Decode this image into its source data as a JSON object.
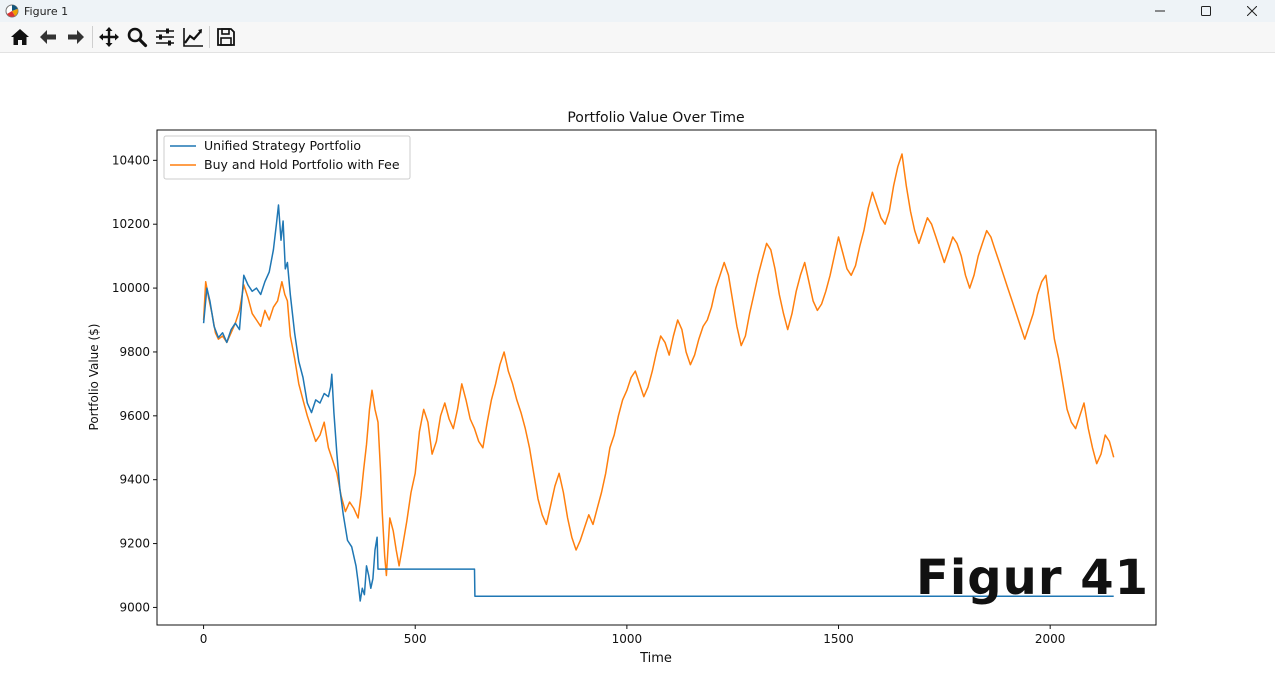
{
  "window": {
    "title": "Figure 1",
    "app_icon": "matplotlib-icon",
    "controls": [
      "minimize-icon",
      "maximize-icon",
      "close-icon"
    ]
  },
  "toolbar": {
    "buttons": [
      {
        "name": "home",
        "icon": "home-icon"
      },
      {
        "name": "back",
        "icon": "arrow-left-icon"
      },
      {
        "name": "forward",
        "icon": "arrow-right-icon"
      },
      {
        "name": "pan",
        "icon": "move-icon"
      },
      {
        "name": "zoom",
        "icon": "zoom-icon"
      },
      {
        "name": "configure-subplots",
        "icon": "sliders-icon"
      },
      {
        "name": "edit-axis",
        "icon": "line-chart-icon"
      },
      {
        "name": "save",
        "icon": "save-icon"
      }
    ]
  },
  "overlay_caption": "Figur 41",
  "chart_data": {
    "type": "line",
    "title": "Portfolio Value Over Time",
    "xlabel": "Time",
    "ylabel": "Portfolio Value ($)",
    "xlim": [
      -110,
      2250
    ],
    "ylim": [
      8945,
      10495
    ],
    "xticks": [
      0,
      500,
      1000,
      1500,
      2000
    ],
    "yticks": [
      9000,
      9200,
      9400,
      9600,
      9800,
      10000,
      10200,
      10400
    ],
    "grid": false,
    "legend": "top-left",
    "series": [
      {
        "name": "Unified Strategy Portfolio",
        "color": "#1f77b4",
        "points": [
          [
            0,
            9890
          ],
          [
            8,
            10000
          ],
          [
            15,
            9960
          ],
          [
            25,
            9880
          ],
          [
            35,
            9845
          ],
          [
            45,
            9860
          ],
          [
            55,
            9830
          ],
          [
            65,
            9870
          ],
          [
            75,
            9890
          ],
          [
            85,
            9870
          ],
          [
            95,
            10040
          ],
          [
            105,
            10010
          ],
          [
            115,
            9990
          ],
          [
            125,
            10000
          ],
          [
            135,
            9980
          ],
          [
            145,
            10020
          ],
          [
            155,
            10050
          ],
          [
            165,
            10120
          ],
          [
            172,
            10200
          ],
          [
            177,
            10260
          ],
          [
            183,
            10150
          ],
          [
            188,
            10210
          ],
          [
            193,
            10060
          ],
          [
            198,
            10080
          ],
          [
            205,
            9980
          ],
          [
            215,
            9860
          ],
          [
            225,
            9770
          ],
          [
            235,
            9720
          ],
          [
            245,
            9640
          ],
          [
            255,
            9610
          ],
          [
            265,
            9650
          ],
          [
            275,
            9640
          ],
          [
            285,
            9670
          ],
          [
            295,
            9660
          ],
          [
            300,
            9690
          ],
          [
            303,
            9730
          ],
          [
            308,
            9610
          ],
          [
            315,
            9480
          ],
          [
            322,
            9370
          ],
          [
            330,
            9290
          ],
          [
            340,
            9210
          ],
          [
            350,
            9190
          ],
          [
            360,
            9130
          ],
          [
            365,
            9080
          ],
          [
            370,
            9020
          ],
          [
            375,
            9060
          ],
          [
            380,
            9040
          ],
          [
            385,
            9130
          ],
          [
            390,
            9100
          ],
          [
            395,
            9060
          ],
          [
            400,
            9090
          ],
          [
            405,
            9180
          ],
          [
            410,
            9220
          ],
          [
            412,
            9120
          ],
          [
            640,
            9120
          ],
          [
            641,
            9035
          ],
          [
            2150,
            9035
          ]
        ]
      },
      {
        "name": "Buy and Hold Portfolio with Fee",
        "color": "#ff7f0e",
        "points": [
          [
            0,
            9900
          ],
          [
            5,
            10020
          ],
          [
            12,
            9970
          ],
          [
            20,
            9920
          ],
          [
            28,
            9860
          ],
          [
            35,
            9840
          ],
          [
            45,
            9850
          ],
          [
            55,
            9830
          ],
          [
            65,
            9860
          ],
          [
            75,
            9890
          ],
          [
            85,
            9930
          ],
          [
            95,
            10010
          ],
          [
            105,
            9970
          ],
          [
            115,
            9920
          ],
          [
            125,
            9900
          ],
          [
            135,
            9880
          ],
          [
            145,
            9930
          ],
          [
            155,
            9900
          ],
          [
            165,
            9940
          ],
          [
            175,
            9960
          ],
          [
            185,
            10020
          ],
          [
            192,
            9980
          ],
          [
            198,
            9960
          ],
          [
            205,
            9850
          ],
          [
            215,
            9780
          ],
          [
            225,
            9700
          ],
          [
            235,
            9650
          ],
          [
            245,
            9600
          ],
          [
            255,
            9560
          ],
          [
            265,
            9520
          ],
          [
            275,
            9540
          ],
          [
            285,
            9580
          ],
          [
            295,
            9500
          ],
          [
            305,
            9460
          ],
          [
            315,
            9420
          ],
          [
            325,
            9350
          ],
          [
            335,
            9300
          ],
          [
            345,
            9330
          ],
          [
            355,
            9310
          ],
          [
            365,
            9280
          ],
          [
            372,
            9350
          ],
          [
            378,
            9430
          ],
          [
            385,
            9510
          ],
          [
            392,
            9620
          ],
          [
            398,
            9680
          ],
          [
            405,
            9620
          ],
          [
            412,
            9580
          ],
          [
            418,
            9430
          ],
          [
            422,
            9300
          ],
          [
            428,
            9160
          ],
          [
            432,
            9100
          ],
          [
            440,
            9280
          ],
          [
            448,
            9240
          ],
          [
            455,
            9180
          ],
          [
            462,
            9130
          ],
          [
            470,
            9190
          ],
          [
            480,
            9270
          ],
          [
            490,
            9360
          ],
          [
            500,
            9420
          ],
          [
            510,
            9550
          ],
          [
            520,
            9620
          ],
          [
            530,
            9580
          ],
          [
            540,
            9480
          ],
          [
            550,
            9520
          ],
          [
            560,
            9600
          ],
          [
            570,
            9640
          ],
          [
            580,
            9590
          ],
          [
            590,
            9560
          ],
          [
            600,
            9620
          ],
          [
            610,
            9700
          ],
          [
            620,
            9650
          ],
          [
            630,
            9590
          ],
          [
            640,
            9560
          ],
          [
            650,
            9520
          ],
          [
            660,
            9500
          ],
          [
            670,
            9580
          ],
          [
            680,
            9650
          ],
          [
            690,
            9700
          ],
          [
            700,
            9760
          ],
          [
            710,
            9800
          ],
          [
            720,
            9740
          ],
          [
            730,
            9700
          ],
          [
            740,
            9650
          ],
          [
            750,
            9610
          ],
          [
            760,
            9560
          ],
          [
            770,
            9500
          ],
          [
            780,
            9420
          ],
          [
            790,
            9340
          ],
          [
            800,
            9290
          ],
          [
            810,
            9260
          ],
          [
            820,
            9320
          ],
          [
            830,
            9380
          ],
          [
            840,
            9420
          ],
          [
            850,
            9360
          ],
          [
            860,
            9280
          ],
          [
            870,
            9220
          ],
          [
            880,
            9180
          ],
          [
            890,
            9210
          ],
          [
            900,
            9250
          ],
          [
            910,
            9290
          ],
          [
            920,
            9260
          ],
          [
            930,
            9310
          ],
          [
            940,
            9360
          ],
          [
            950,
            9420
          ],
          [
            960,
            9500
          ],
          [
            970,
            9540
          ],
          [
            980,
            9600
          ],
          [
            990,
            9650
          ],
          [
            1000,
            9680
          ],
          [
            1010,
            9720
          ],
          [
            1020,
            9740
          ],
          [
            1030,
            9700
          ],
          [
            1040,
            9660
          ],
          [
            1050,
            9690
          ],
          [
            1060,
            9740
          ],
          [
            1070,
            9800
          ],
          [
            1080,
            9850
          ],
          [
            1090,
            9830
          ],
          [
            1100,
            9790
          ],
          [
            1110,
            9850
          ],
          [
            1120,
            9900
          ],
          [
            1130,
            9870
          ],
          [
            1140,
            9800
          ],
          [
            1150,
            9760
          ],
          [
            1160,
            9790
          ],
          [
            1170,
            9840
          ],
          [
            1180,
            9880
          ],
          [
            1190,
            9900
          ],
          [
            1200,
            9940
          ],
          [
            1210,
            10000
          ],
          [
            1220,
            10040
          ],
          [
            1230,
            10080
          ],
          [
            1240,
            10040
          ],
          [
            1250,
            9960
          ],
          [
            1260,
            9880
          ],
          [
            1270,
            9820
          ],
          [
            1280,
            9850
          ],
          [
            1290,
            9920
          ],
          [
            1300,
            9980
          ],
          [
            1310,
            10040
          ],
          [
            1320,
            10090
          ],
          [
            1330,
            10140
          ],
          [
            1340,
            10120
          ],
          [
            1350,
            10060
          ],
          [
            1360,
            9980
          ],
          [
            1370,
            9920
          ],
          [
            1380,
            9870
          ],
          [
            1390,
            9920
          ],
          [
            1400,
            9990
          ],
          [
            1410,
            10040
          ],
          [
            1420,
            10080
          ],
          [
            1430,
            10020
          ],
          [
            1440,
            9960
          ],
          [
            1450,
            9930
          ],
          [
            1460,
            9950
          ],
          [
            1470,
            9990
          ],
          [
            1480,
            10040
          ],
          [
            1490,
            10100
          ],
          [
            1500,
            10160
          ],
          [
            1510,
            10110
          ],
          [
            1520,
            10060
          ],
          [
            1530,
            10040
          ],
          [
            1540,
            10070
          ],
          [
            1550,
            10130
          ],
          [
            1560,
            10180
          ],
          [
            1570,
            10250
          ],
          [
            1580,
            10300
          ],
          [
            1590,
            10260
          ],
          [
            1600,
            10220
          ],
          [
            1610,
            10200
          ],
          [
            1620,
            10240
          ],
          [
            1630,
            10320
          ],
          [
            1640,
            10380
          ],
          [
            1650,
            10420
          ],
          [
            1660,
            10320
          ],
          [
            1670,
            10240
          ],
          [
            1680,
            10180
          ],
          [
            1690,
            10140
          ],
          [
            1700,
            10180
          ],
          [
            1710,
            10220
          ],
          [
            1720,
            10200
          ],
          [
            1730,
            10160
          ],
          [
            1740,
            10120
          ],
          [
            1750,
            10080
          ],
          [
            1760,
            10120
          ],
          [
            1770,
            10160
          ],
          [
            1780,
            10140
          ],
          [
            1790,
            10100
          ],
          [
            1800,
            10040
          ],
          [
            1810,
            10000
          ],
          [
            1820,
            10040
          ],
          [
            1830,
            10100
          ],
          [
            1840,
            10140
          ],
          [
            1850,
            10180
          ],
          [
            1860,
            10160
          ],
          [
            1870,
            10120
          ],
          [
            1880,
            10080
          ],
          [
            1890,
            10040
          ],
          [
            1900,
            10000
          ],
          [
            1910,
            9960
          ],
          [
            1920,
            9920
          ],
          [
            1930,
            9880
          ],
          [
            1940,
            9840
          ],
          [
            1950,
            9880
          ],
          [
            1960,
            9920
          ],
          [
            1970,
            9980
          ],
          [
            1980,
            10020
          ],
          [
            1990,
            10040
          ],
          [
            2000,
            9940
          ],
          [
            2010,
            9840
          ],
          [
            2020,
            9780
          ],
          [
            2030,
            9700
          ],
          [
            2040,
            9620
          ],
          [
            2050,
            9580
          ],
          [
            2060,
            9560
          ],
          [
            2070,
            9600
          ],
          [
            2080,
            9640
          ],
          [
            2090,
            9560
          ],
          [
            2100,
            9500
          ],
          [
            2110,
            9450
          ],
          [
            2120,
            9480
          ],
          [
            2130,
            9540
          ],
          [
            2140,
            9520
          ],
          [
            2150,
            9470
          ]
        ]
      }
    ]
  }
}
